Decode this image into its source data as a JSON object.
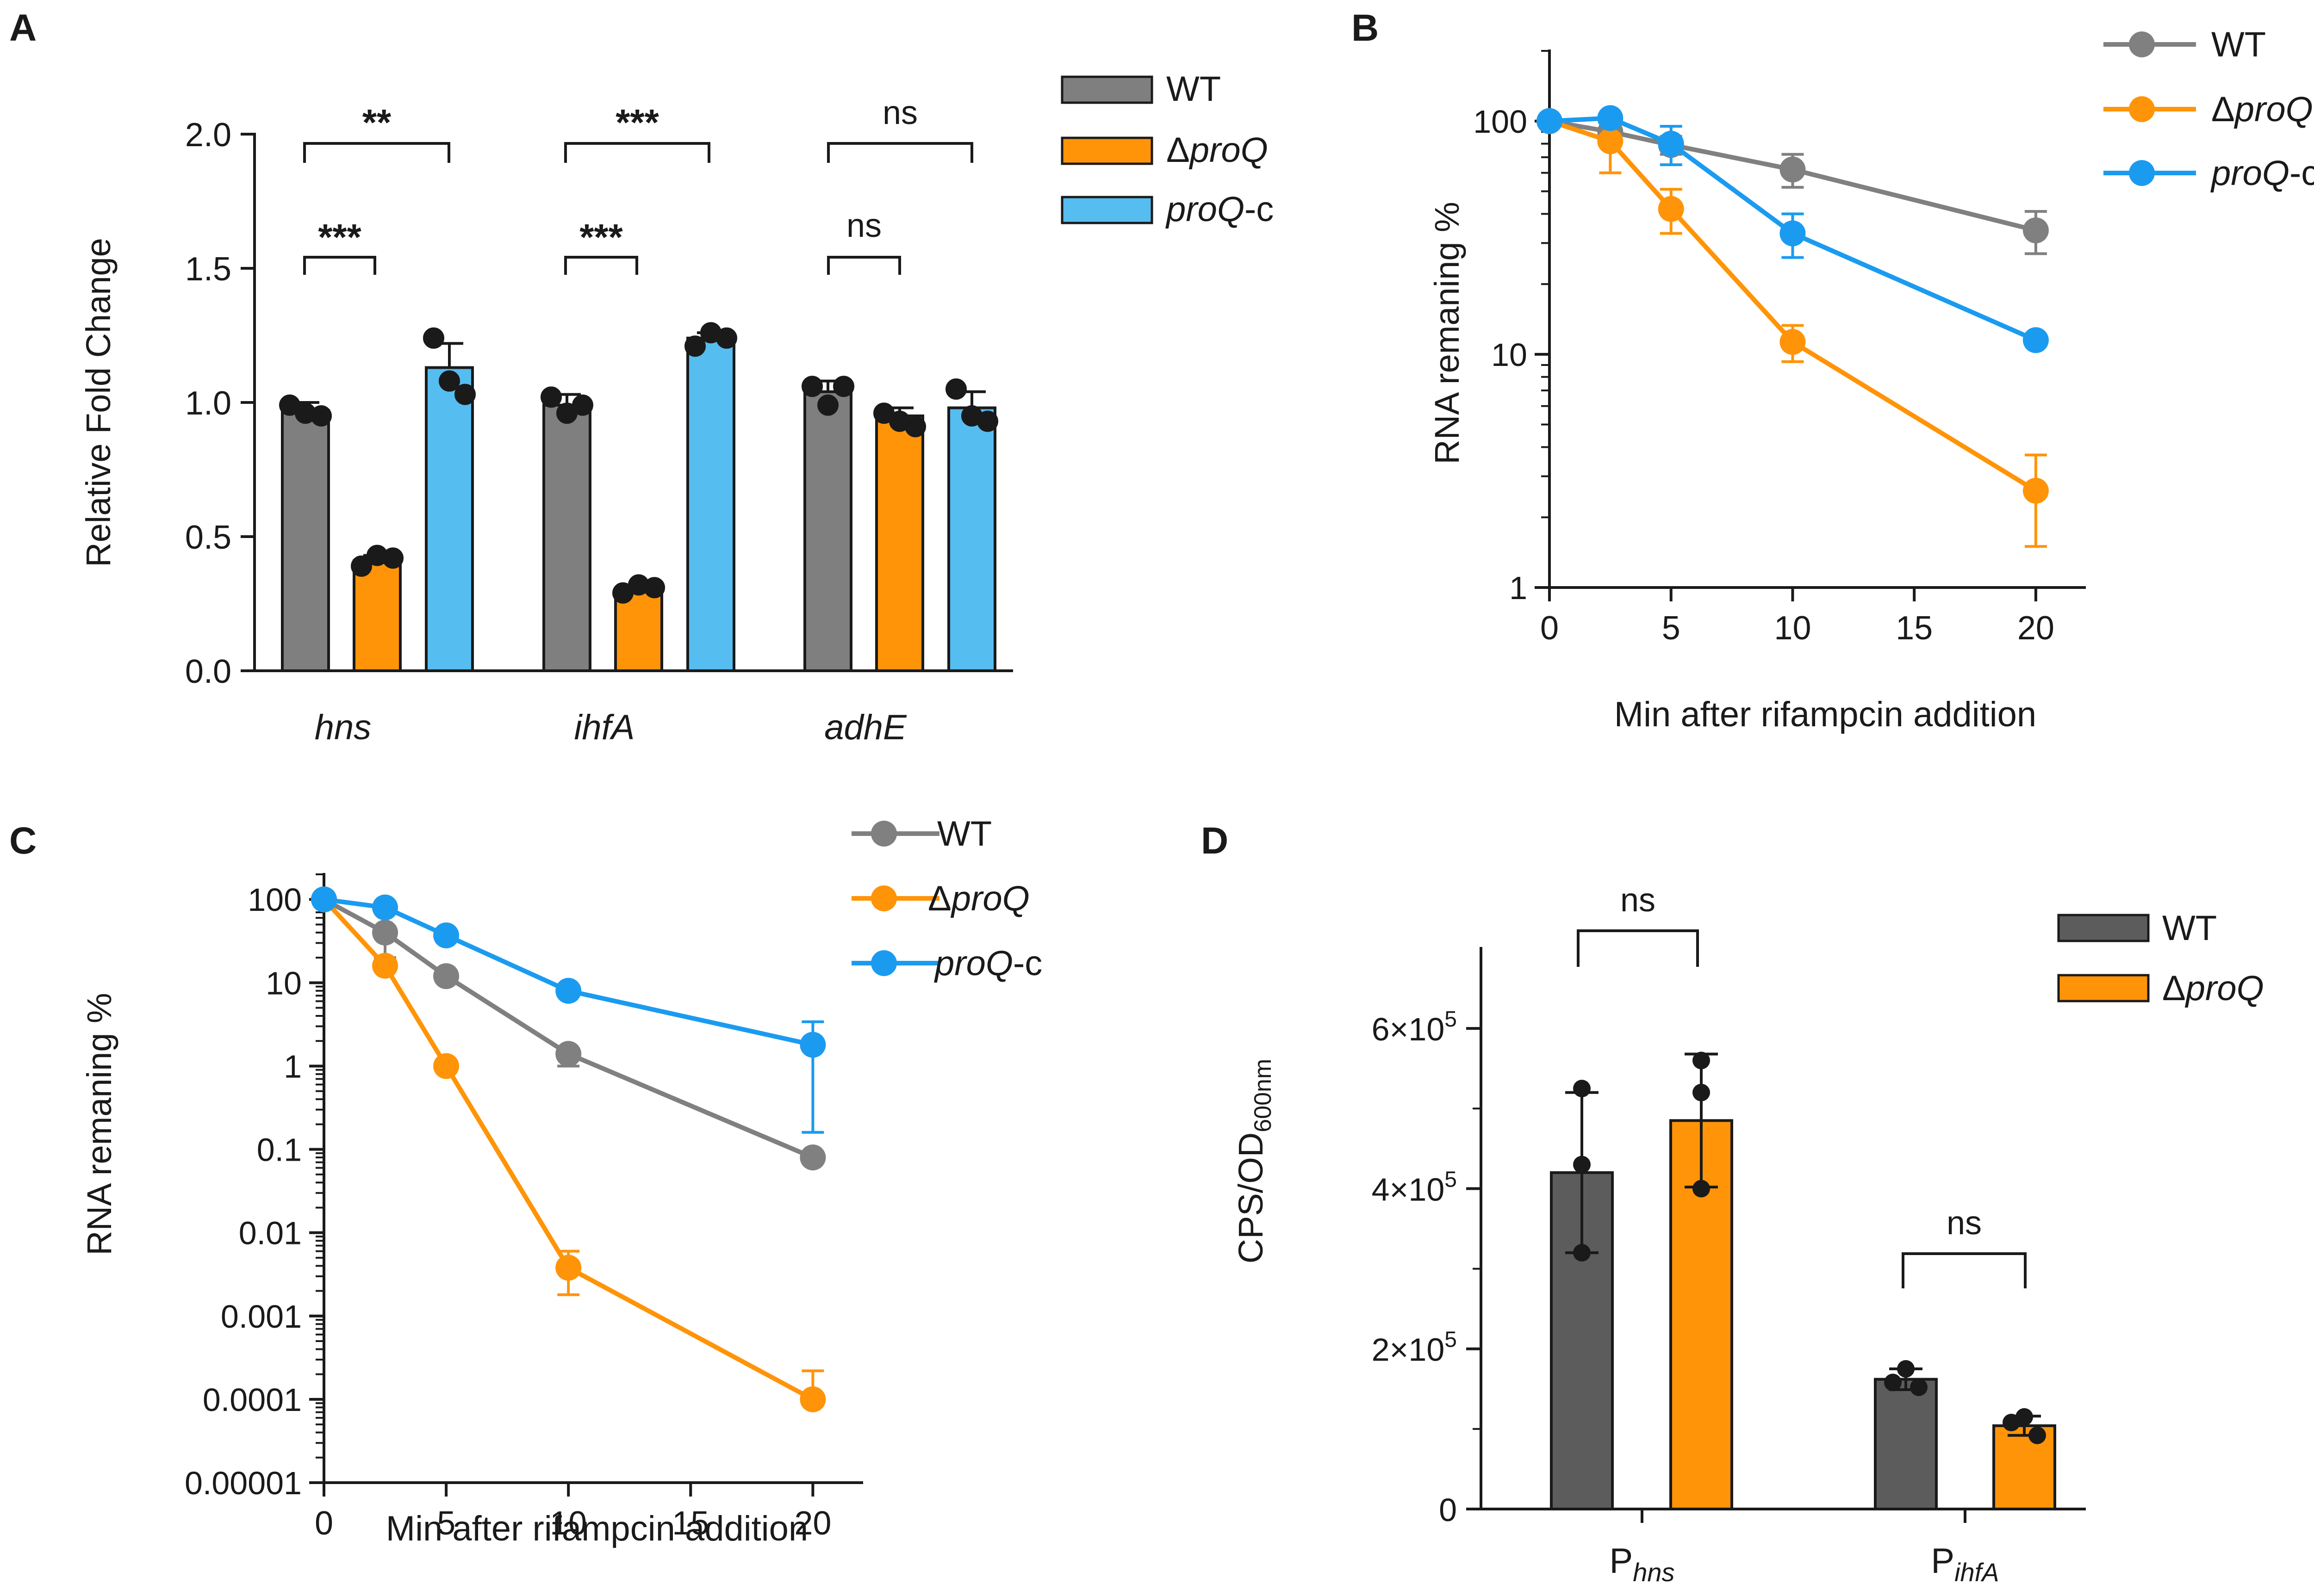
{
  "colors": {
    "wt_bar": "#7f7f7f",
    "wt_bar_dark": "#5c5c5c",
    "proq_orange": "#ff9408",
    "proqc_blue": "#56bdf0",
    "proqc_line": "#1b9bf0",
    "wt_line": "#808080",
    "axis": "#1a1a1a"
  },
  "chart_data": [
    {
      "panel": "A",
      "type": "bar",
      "ylabel": "Relative Fold Change",
      "xlabel": "",
      "ylim": [
        0,
        2.0
      ],
      "yticks": [
        "0.0",
        "0.5",
        "1.0",
        "1.5",
        "2.0"
      ],
      "categories": [
        "hns",
        "ihfA",
        "adhE"
      ],
      "legend": [
        "WT",
        "Δ",
        "proQ",
        "proQ",
        "-c"
      ],
      "series": [
        {
          "name": "WT",
          "values": [
            0.97,
            0.99,
            1.04
          ],
          "sd": [
            0.03,
            0.04,
            0.04
          ],
          "points": [
            [
              0.99,
              0.96,
              0.95
            ],
            [
              1.02,
              0.96,
              0.99
            ],
            [
              1.06,
              0.99,
              1.06
            ]
          ]
        },
        {
          "name": "ΔproQ",
          "values": [
            0.41,
            0.3,
            0.95
          ],
          "sd": [
            0.02,
            0.02,
            0.03
          ],
          "points": [
            [
              0.39,
              0.43,
              0.42
            ],
            [
              0.29,
              0.32,
              0.31
            ],
            [
              0.96,
              0.93,
              0.91
            ]
          ]
        },
        {
          "name": "proQ-c",
          "values": [
            1.13,
            1.24,
            0.98
          ],
          "sd": [
            0.09,
            0.02,
            0.06
          ],
          "points": [
            [
              1.24,
              1.08,
              1.03
            ],
            [
              1.21,
              1.26,
              1.24
            ],
            [
              1.05,
              0.95,
              0.93
            ]
          ]
        }
      ],
      "significance": [
        {
          "group": "hns",
          "pair": "WT vs ΔproQ",
          "label": "***"
        },
        {
          "group": "hns",
          "pair": "WT vs proQ-c",
          "label": "**"
        },
        {
          "group": "ihfA",
          "pair": "WT vs ΔproQ",
          "label": "***"
        },
        {
          "group": "ihfA",
          "pair": "WT vs proQ-c",
          "label": "***"
        },
        {
          "group": "adhE",
          "pair": "WT vs ΔproQ",
          "label": "ns"
        },
        {
          "group": "adhE",
          "pair": "WT vs proQ-c",
          "label": "ns"
        }
      ]
    },
    {
      "panel": "B",
      "type": "line",
      "yscale": "log",
      "ylabel": "RNA remaning %",
      "xlabel": "Min after rifampcin addition",
      "xlim": [
        0,
        22
      ],
      "ylim": [
        1,
        200
      ],
      "xticks": [
        "0",
        "5",
        "10",
        "15",
        "20"
      ],
      "yticks": [
        "1",
        "10",
        "100"
      ],
      "x": [
        0,
        2.5,
        5,
        10,
        20
      ],
      "series": [
        {
          "name": "WT",
          "values": [
            100,
            90,
            79,
            62,
            34
          ],
          "err": [
            3,
            8,
            7,
            10,
            7
          ]
        },
        {
          "name": "ΔproQ",
          "values": [
            100,
            82,
            42,
            11.3,
            2.6
          ],
          "err": [
            3,
            22,
            9,
            2,
            1.1
          ]
        },
        {
          "name": "proQ-c",
          "values": [
            100,
            103,
            80,
            33,
            11.5
          ],
          "err": [
            3,
            4,
            15,
            7,
            0.5
          ]
        }
      ]
    },
    {
      "panel": "C",
      "type": "line",
      "yscale": "log",
      "ylabel": "RNA remaning %",
      "xlabel": "Min after rifampcin addition",
      "xlim": [
        0,
        22
      ],
      "ylim": [
        1e-05,
        200
      ],
      "xticks": [
        "0",
        "5",
        "10",
        "15",
        "20"
      ],
      "yticks": [
        "0.00001",
        "0.0001",
        "0.001",
        "0.01",
        "0.1",
        "1",
        "10",
        "100"
      ],
      "x": [
        0,
        2.5,
        5,
        10,
        20
      ],
      "series": [
        {
          "name": "WT",
          "values": [
            100,
            40,
            12,
            1.4,
            0.08
          ],
          "err_up": [
            1,
            0,
            0,
            0,
            0
          ],
          "err_dn": [
            1,
            20,
            0,
            0.4,
            0
          ]
        },
        {
          "name": "ΔproQ",
          "values": [
            100,
            16,
            1.0,
            0.0038,
            0.0001
          ],
          "err_up": [
            1,
            0,
            0,
            0.0022,
            0.00012
          ],
          "err_dn": [
            1,
            0,
            0,
            0.002,
            0
          ]
        },
        {
          "name": "proQ-c",
          "values": [
            100,
            80,
            37,
            8,
            1.8
          ],
          "err_up": [
            1,
            0,
            0,
            0,
            1.6
          ],
          "err_dn": [
            1,
            0,
            0,
            0,
            1.64
          ]
        }
      ]
    },
    {
      "panel": "D",
      "type": "bar",
      "ylim": [
        0,
        700000
      ],
      "ylabel_main": "CPS/OD",
      "ylabel_sub": "600nm",
      "ytick_base": "×10",
      "ytick_exp": "5",
      "yticks": [
        {
          "value": 0,
          "label": "0"
        },
        {
          "value": 200000,
          "mant": "2"
        },
        {
          "value": 400000,
          "mant": "4"
        },
        {
          "value": 600000,
          "mant": "6"
        }
      ],
      "categories": [
        {
          "main": "P",
          "sub": "hns"
        },
        {
          "main": "P",
          "sub": "ihfA"
        }
      ],
      "series": [
        {
          "name": "WT",
          "values": [
            420000,
            162000
          ],
          "sd": [
            100000,
            13000
          ],
          "points": [
            [
              525000,
              430000,
              320000
            ],
            [
              175000,
              158000,
              152000
            ]
          ]
        },
        {
          "name": "ΔproQ",
          "values": [
            485000,
            104000
          ],
          "sd": [
            83000,
            12000
          ],
          "points": [
            [
              560000,
              520000,
              400000
            ],
            [
              115000,
              108000,
              92000
            ]
          ]
        }
      ],
      "legend": [
        "WT",
        "Δ",
        "proQ"
      ],
      "significance": [
        {
          "group": "Phns",
          "label": "ns"
        },
        {
          "group": "PihfA",
          "label": "ns"
        }
      ]
    }
  ],
  "panel_labels": [
    "A",
    "B",
    "C",
    "D"
  ]
}
